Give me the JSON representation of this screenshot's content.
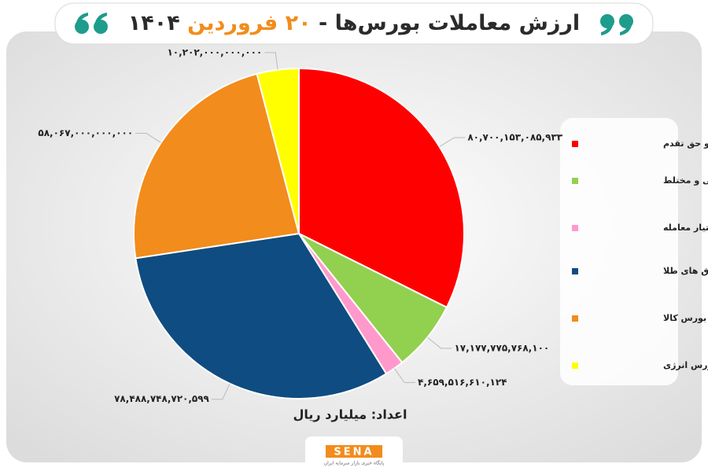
{
  "chart_data": {
    "type": "pie",
    "title": [
      "ارزش معاملات بورس‌ها -",
      "۲۰ فروردین",
      "۱۴۰۴"
    ],
    "subtitle": "اعداد: میلیارد ریال",
    "categories": [
      "سهام و حق تقدم",
      "صندوق سهامی و مختلط",
      "اختیار معامله",
      "صندوق های طلا",
      "بازار فیزیکی بورس کالا",
      "بازار فیزیکی بورس انرژی"
    ],
    "values": [
      80700153085933,
      17177775768100,
      4659516610124,
      78488748720599,
      58067000000000,
      10202000000000
    ],
    "value_labels": [
      "۸۰,۷۰۰,۱۵۳,۰۸۵,۹۳۳",
      "۱۷,۱۷۷,۷۷۵,۷۶۸,۱۰۰",
      "۴,۶۵۹,۵۱۶,۶۱۰,۱۲۴",
      "۷۸,۴۸۸,۷۴۸,۷۲۰,۵۹۹",
      "۵۸,۰۶۷,۰۰۰,۰۰۰,۰۰۰",
      "۱۰,۲۰۲,۰۰۰,۰۰۰,۰۰۰"
    ],
    "colors": [
      "#ff0000",
      "#92d050",
      "#ff99cc",
      "#0f4c81",
      "#f28c1c",
      "#ffff00"
    ],
    "legend": "right"
  },
  "logo": {
    "name": "SENA",
    "tagline": "پایگاه خبری بازار سرمایه ایران"
  }
}
